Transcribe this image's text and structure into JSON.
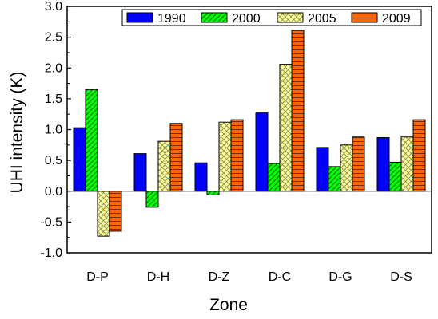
{
  "chart_data": {
    "type": "bar",
    "xlabel": "Zone",
    "ylabel": "UHI intensity (K)",
    "ylim": [
      -1.0,
      3.0
    ],
    "yticks": [
      -1.0,
      -0.5,
      0.0,
      0.5,
      1.0,
      1.5,
      2.0,
      2.5,
      3.0
    ],
    "ytick_labels": [
      "-1.0",
      "-0.5",
      "0.0",
      "0.5",
      "1.0",
      "1.5",
      "2.0",
      "2.5",
      "3.0"
    ],
    "categories": [
      "D-P",
      "D-H",
      "D-Z",
      "D-C",
      "D-G",
      "D-S"
    ],
    "legend_position": "top-right",
    "series": [
      {
        "name": "1990",
        "color": "#0000ff",
        "pattern": "solid",
        "values": [
          1.03,
          0.61,
          0.46,
          1.27,
          0.71,
          0.87
        ]
      },
      {
        "name": "2000",
        "color": "#00ff00",
        "pattern": "diagonal-hatch",
        "values": [
          1.65,
          -0.26,
          -0.06,
          0.45,
          0.4,
          0.47
        ]
      },
      {
        "name": "2005",
        "color": "#ffff99",
        "pattern": "cross-hatch",
        "values": [
          -0.73,
          0.81,
          1.12,
          2.06,
          0.75,
          0.88
        ]
      },
      {
        "name": "2009",
        "color": "#ff6600",
        "pattern": "horizontal-lines",
        "values": [
          -0.65,
          1.1,
          1.16,
          2.61,
          0.88,
          1.16
        ]
      }
    ]
  }
}
